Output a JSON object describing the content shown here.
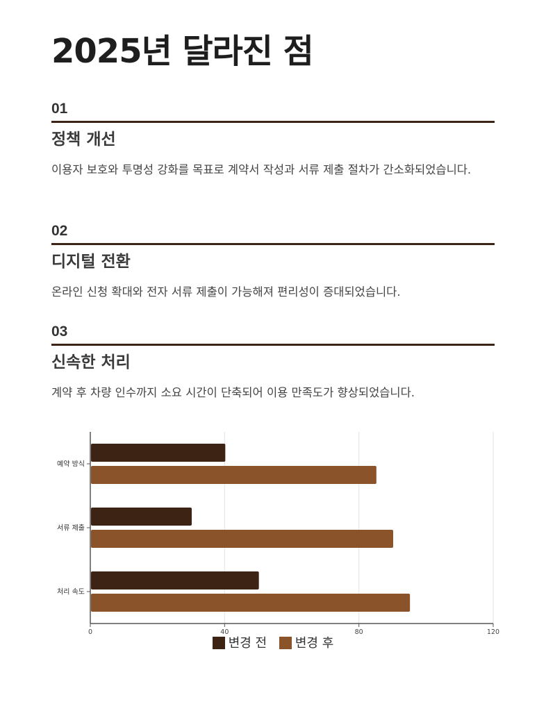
{
  "title": "2025년 달라진 점",
  "sections": [
    {
      "number": "01",
      "heading": "정책 개선",
      "description": "이용자 보호와 투명성 강화를 목표로 계약서 작성과 서류 제출 절차가 간소화되었습니다."
    },
    {
      "number": "02",
      "heading": "디지털 전환",
      "description": "온라인 신청 확대와 전자 서류 제출이 가능해져 편리성이 증대되었습니다."
    },
    {
      "number": "03",
      "heading": "신속한 처리",
      "description": "계약 후 차량 인수까지 소요 시간이 단축되어 이용 만족도가 향상되었습니다."
    }
  ],
  "colors": {
    "rule": "#3b2416",
    "before": "#3d2314",
    "after": "#8b5329"
  },
  "chart_data": {
    "type": "bar",
    "orientation": "horizontal",
    "categories": [
      "예약 방식",
      "서류 제출",
      "처리 속도"
    ],
    "series": [
      {
        "name": "변경 전",
        "values": [
          40,
          30,
          50
        ],
        "color": "#3d2314"
      },
      {
        "name": "변경 후",
        "values": [
          85,
          90,
          95
        ],
        "color": "#8b5329"
      }
    ],
    "xlim": [
      0,
      120
    ],
    "xticks": [
      "0",
      "40",
      "80",
      "120"
    ],
    "grid": true,
    "legend": "bottom"
  }
}
